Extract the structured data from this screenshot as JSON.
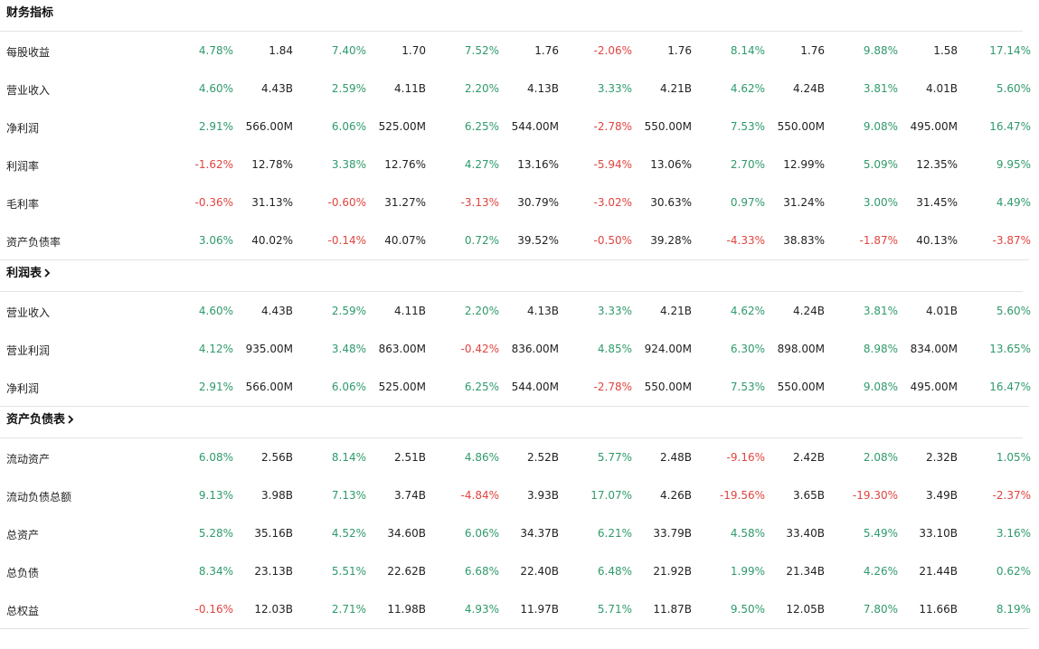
{
  "sections": [
    {
      "title": "财务指标",
      "has_chevron": false,
      "rows": [
        {
          "label": "每股收益",
          "cells": [
            "4.78%",
            "1.84",
            "7.40%",
            "1.70",
            "7.52%",
            "1.76",
            "-2.06%",
            "1.76",
            "8.14%",
            "1.76",
            "9.88%",
            "1.58",
            "17.14%"
          ]
        },
        {
          "label": "营业收入",
          "cells": [
            "4.60%",
            "4.43B",
            "2.59%",
            "4.11B",
            "2.20%",
            "4.13B",
            "3.33%",
            "4.21B",
            "4.62%",
            "4.24B",
            "3.81%",
            "4.01B",
            "5.60%"
          ]
        },
        {
          "label": "净利润",
          "cells": [
            "2.91%",
            "566.00M",
            "6.06%",
            "525.00M",
            "6.25%",
            "544.00M",
            "-2.78%",
            "550.00M",
            "7.53%",
            "550.00M",
            "9.08%",
            "495.00M",
            "16.47%"
          ]
        },
        {
          "label": "利润率",
          "cells": [
            "-1.62%",
            "12.78%",
            "3.38%",
            "12.76%",
            "4.27%",
            "13.16%",
            "-5.94%",
            "13.06%",
            "2.70%",
            "12.99%",
            "5.09%",
            "12.35%",
            "9.95%"
          ]
        },
        {
          "label": "毛利率",
          "cells": [
            "-0.36%",
            "31.13%",
            "-0.60%",
            "31.27%",
            "-3.13%",
            "30.79%",
            "-3.02%",
            "30.63%",
            "0.97%",
            "31.24%",
            "3.00%",
            "31.45%",
            "4.49%"
          ]
        },
        {
          "label": "资产负债率",
          "cells": [
            "3.06%",
            "40.02%",
            "-0.14%",
            "40.07%",
            "0.72%",
            "39.52%",
            "-0.50%",
            "39.28%",
            "-4.33%",
            "38.83%",
            "-1.87%",
            "40.13%",
            "-3.87%"
          ]
        }
      ]
    },
    {
      "title": "利润表",
      "has_chevron": true,
      "rows": [
        {
          "label": "营业收入",
          "cells": [
            "4.60%",
            "4.43B",
            "2.59%",
            "4.11B",
            "2.20%",
            "4.13B",
            "3.33%",
            "4.21B",
            "4.62%",
            "4.24B",
            "3.81%",
            "4.01B",
            "5.60%"
          ]
        },
        {
          "label": "营业利润",
          "cells": [
            "4.12%",
            "935.00M",
            "3.48%",
            "863.00M",
            "-0.42%",
            "836.00M",
            "4.85%",
            "924.00M",
            "6.30%",
            "898.00M",
            "8.98%",
            "834.00M",
            "13.65%"
          ]
        },
        {
          "label": "净利润",
          "cells": [
            "2.91%",
            "566.00M",
            "6.06%",
            "525.00M",
            "6.25%",
            "544.00M",
            "-2.78%",
            "550.00M",
            "7.53%",
            "550.00M",
            "9.08%",
            "495.00M",
            "16.47%"
          ]
        }
      ]
    },
    {
      "title": "资产负债表",
      "has_chevron": true,
      "rows": [
        {
          "label": "流动资产",
          "cells": [
            "6.08%",
            "2.56B",
            "8.14%",
            "2.51B",
            "4.86%",
            "2.52B",
            "5.77%",
            "2.48B",
            "-9.16%",
            "2.42B",
            "2.08%",
            "2.32B",
            "1.05%"
          ]
        },
        {
          "label": "流动负债总额",
          "cells": [
            "9.13%",
            "3.98B",
            "7.13%",
            "3.74B",
            "-4.84%",
            "3.93B",
            "17.07%",
            "4.26B",
            "-19.56%",
            "3.65B",
            "-19.30%",
            "3.49B",
            "-2.37%"
          ]
        },
        {
          "label": "总资产",
          "cells": [
            "5.28%",
            "35.16B",
            "4.52%",
            "34.60B",
            "6.06%",
            "34.37B",
            "6.21%",
            "33.79B",
            "4.58%",
            "33.40B",
            "5.49%",
            "33.10B",
            "3.16%"
          ]
        },
        {
          "label": "总负债",
          "cells": [
            "8.34%",
            "23.13B",
            "5.51%",
            "22.62B",
            "6.68%",
            "22.40B",
            "6.48%",
            "21.92B",
            "1.99%",
            "21.34B",
            "4.26%",
            "21.44B",
            "0.62%"
          ]
        },
        {
          "label": "总权益",
          "cells": [
            "-0.16%",
            "12.03B",
            "2.71%",
            "11.98B",
            "4.93%",
            "11.97B",
            "5.71%",
            "11.87B",
            "9.50%",
            "12.05B",
            "7.80%",
            "11.66B",
            "8.19%"
          ]
        }
      ]
    }
  ],
  "colors": {
    "positive": "#2f9a6b",
    "negative": "#e0443f"
  }
}
